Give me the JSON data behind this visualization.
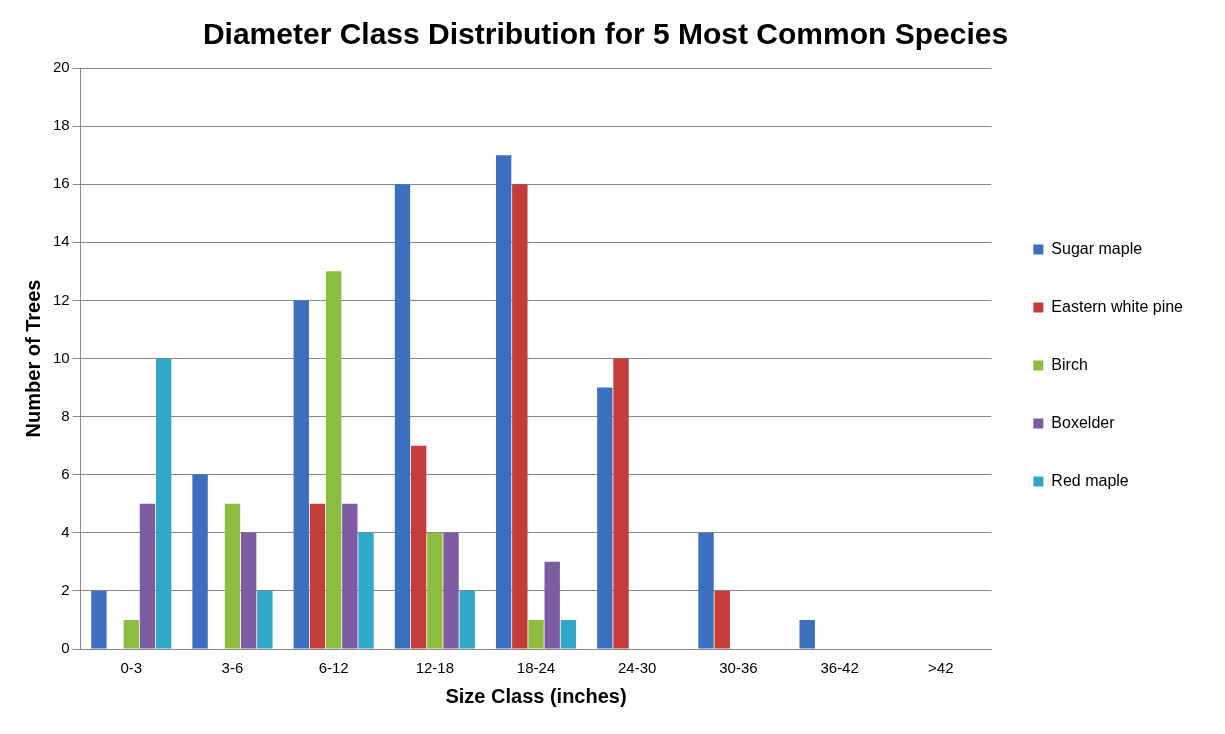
{
  "chart_data": {
    "type": "bar",
    "title": "Diameter Class Distribution for 5 Most Common Species",
    "xlabel": "Size Class (inches)",
    "ylabel": "Number of Trees",
    "categories": [
      "0-3",
      "3-6",
      "6-12",
      "12-18",
      "18-24",
      "24-30",
      "30-36",
      "36-42",
      ">42"
    ],
    "series": [
      {
        "name": "Sugar maple",
        "color": "#3d6fc0",
        "values": [
          2,
          6,
          12,
          16,
          17,
          9,
          4,
          1,
          0
        ]
      },
      {
        "name": "Eastern white pine",
        "color": "#c53d38",
        "values": [
          0,
          0,
          5,
          7,
          16,
          10,
          2,
          0,
          0
        ]
      },
      {
        "name": "Birch",
        "color": "#8dbd40",
        "values": [
          1,
          5,
          13,
          4,
          1,
          0,
          0,
          0,
          0
        ]
      },
      {
        "name": "Boxelder",
        "color": "#7d5ba3",
        "values": [
          5,
          4,
          5,
          4,
          3,
          0,
          0,
          0,
          0
        ]
      },
      {
        "name": "Red maple",
        "color": "#30a8c8",
        "values": [
          10,
          2,
          4,
          2,
          1,
          0,
          0,
          0,
          0
        ]
      }
    ],
    "ylim": [
      0,
      20
    ],
    "yticks": [
      0,
      2,
      4,
      6,
      8,
      10,
      12,
      14,
      16,
      18,
      20
    ],
    "grid": "y",
    "legend": "right"
  }
}
